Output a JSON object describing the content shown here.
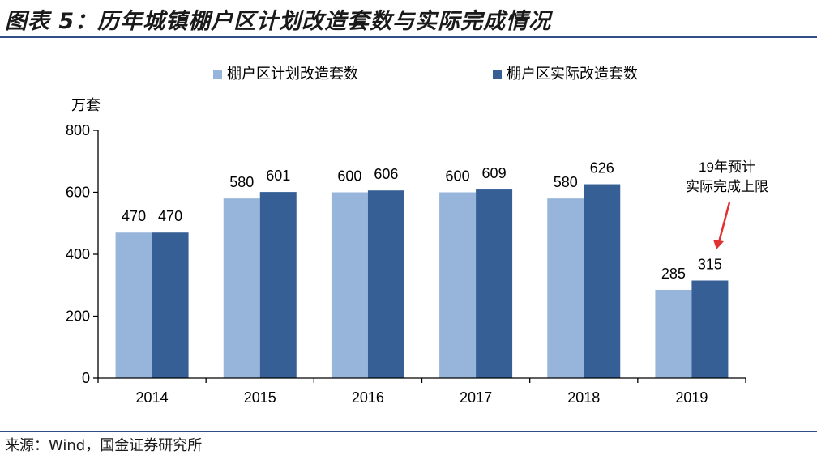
{
  "figure": {
    "title": "图表 5：历年城镇棚户区计划改造套数与实际完成情况",
    "source": "来源：Wind，国金证券研究所"
  },
  "colors": {
    "planned": "#97b5da",
    "actual": "#355f95",
    "axis": "#000000",
    "rule": "#2f4f86",
    "annotation_arrow": "#e03030"
  },
  "chart_data": {
    "type": "bar",
    "ylabel": "万套",
    "ylim": [
      0,
      800
    ],
    "yticks": [
      0,
      200,
      400,
      600,
      800
    ],
    "grid": false,
    "legend_position": "top-center",
    "categories": [
      "2014",
      "2015",
      "2016",
      "2017",
      "2018",
      "2019"
    ],
    "series": [
      {
        "name": "棚户区计划改造套数",
        "values": [
          470,
          580,
          600,
          600,
          580,
          285
        ],
        "labels": [
          "470",
          "580",
          "600",
          "600",
          "580",
          "285"
        ]
      },
      {
        "name": "棚户区实际改造套数",
        "values": [
          470,
          601,
          606,
          609,
          626,
          315
        ],
        "labels": [
          "470",
          "601",
          "606",
          "609",
          "626",
          "315"
        ]
      }
    ],
    "annotation": {
      "lines": [
        "19年预计",
        "实际完成上限"
      ],
      "target_category": "2019",
      "target_series": "棚户区实际改造套数"
    }
  }
}
